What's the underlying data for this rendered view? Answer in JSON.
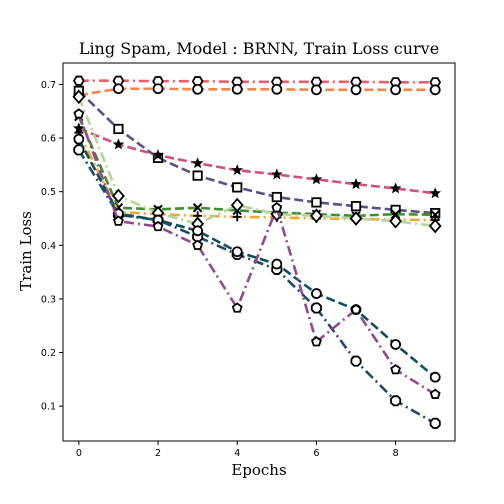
{
  "chart_data": {
    "type": "line",
    "title": "Ling Spam, Model : BRNN, Train Loss curve",
    "xlabel": "Epochs",
    "ylabel": "Train Loss",
    "xlim": [
      -0.4,
      9.5
    ],
    "ylim": [
      0.035,
      0.74
    ],
    "xticks": [
      0,
      2,
      4,
      6,
      8
    ],
    "yticks": [
      0.1,
      0.2,
      0.3,
      0.4,
      0.5,
      0.6,
      0.7
    ],
    "x": [
      0,
      1,
      2,
      3,
      4,
      5,
      6,
      7,
      8,
      9
    ],
    "grid": false,
    "legend": "none",
    "series": [
      {
        "color": "#e8606a",
        "dash": "dashdot",
        "marker": "hexagon",
        "values": [
          0.707,
          0.707,
          0.706,
          0.706,
          0.705,
          0.705,
          0.705,
          0.705,
          0.704,
          0.704
        ]
      },
      {
        "color": "#f0874a",
        "dash": "dashed",
        "marker": "circle",
        "values": [
          0.68,
          0.692,
          0.692,
          0.691,
          0.691,
          0.691,
          0.69,
          0.69,
          0.69,
          0.69
        ]
      },
      {
        "color": "#5a5088",
        "dash": "dashed",
        "marker": "square",
        "values": [
          0.688,
          0.617,
          0.563,
          0.53,
          0.508,
          0.49,
          0.48,
          0.473,
          0.466,
          0.46
        ]
      },
      {
        "color": "#cf4f80",
        "dash": "dashed",
        "marker": "star",
        "values": [
          0.618,
          0.588,
          0.568,
          0.553,
          0.54,
          0.532,
          0.523,
          0.514,
          0.506,
          0.497
        ]
      },
      {
        "color": "#3f8f2f",
        "dash": "dashed",
        "marker": "x",
        "values": [
          0.64,
          0.47,
          0.467,
          0.47,
          0.465,
          0.461,
          0.458,
          0.455,
          0.458,
          0.457
        ]
      },
      {
        "color": "#f0a830",
        "dash": "dashdot",
        "marker": "plus",
        "values": [
          0.61,
          0.462,
          0.458,
          0.455,
          0.453,
          0.452,
          0.45,
          0.449,
          0.448,
          0.447
        ]
      },
      {
        "color": "#b8d49a",
        "dash": "dashdot",
        "marker": "diamond",
        "values": [
          0.677,
          0.492,
          0.46,
          0.44,
          0.475,
          0.458,
          0.455,
          0.45,
          0.445,
          0.436
        ]
      },
      {
        "color": "#1f4a68",
        "dash": "dashdot",
        "marker": "octagon",
        "values": [
          0.578,
          0.457,
          0.447,
          0.416,
          0.383,
          0.355,
          0.283,
          0.184,
          0.11,
          0.068
        ]
      },
      {
        "color": "#0f4f5f",
        "dash": "dashed",
        "marker": "circle",
        "values": [
          0.598,
          0.459,
          0.447,
          0.427,
          0.388,
          0.365,
          0.31,
          0.28,
          0.215,
          0.154
        ]
      },
      {
        "color": "#94488f",
        "dash": "dashdot",
        "marker": "pentagon",
        "values": [
          0.645,
          0.445,
          0.435,
          0.4,
          0.283,
          0.47,
          0.22,
          0.28,
          0.168,
          0.122
        ]
      }
    ]
  }
}
